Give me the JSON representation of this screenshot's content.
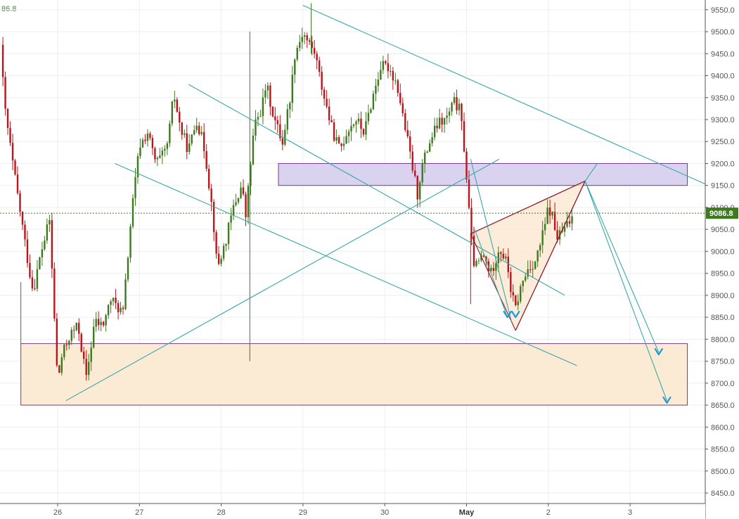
{
  "top_left_label": "86.8",
  "chart_data": {
    "type": "candlestick",
    "y_ticks": [
      8450,
      8500,
      8550,
      8600,
      8650,
      8700,
      8750,
      8800,
      8850,
      8900,
      8950,
      9000,
      9050,
      9100,
      9150,
      9200,
      9250,
      9300,
      9350,
      9400,
      9450,
      9500,
      9550
    ],
    "ylim": [
      8430,
      9570
    ],
    "x_labels": [
      {
        "label": "26",
        "day": 0
      },
      {
        "label": "27",
        "day": 1
      },
      {
        "label": "28",
        "day": 2
      },
      {
        "label": "29",
        "day": 3
      },
      {
        "label": "30",
        "day": 4
      },
      {
        "label": "May",
        "day": 5,
        "bold": true
      },
      {
        "label": "2",
        "day": 6
      },
      {
        "label": "3",
        "day": 7
      }
    ],
    "current_price": {
      "label": "9086.8",
      "value": 9086.8
    },
    "colors": {
      "up": "#3d7a1e",
      "down": "#b8161c",
      "trend": "#3aa8a8",
      "wedge": "#8b1a2a",
      "band_purple": "#d9d3f0",
      "band_orange": "#fcebd4",
      "band_border": "#7a3a8a",
      "arrow": "#1e9ad6",
      "price_tag": "#3d7a1e"
    },
    "anchors": [
      [
        -0.7,
        9470
      ],
      [
        -0.65,
        9330
      ],
      [
        -0.55,
        9200
      ],
      [
        -0.45,
        9080
      ],
      [
        -0.35,
        8960
      ],
      [
        -0.3,
        8910
      ],
      [
        -0.2,
        9000
      ],
      [
        -0.1,
        9070
      ],
      [
        0.0,
        8700
      ],
      [
        0.05,
        8760
      ],
      [
        0.15,
        8810
      ],
      [
        0.25,
        8830
      ],
      [
        0.35,
        8710
      ],
      [
        0.45,
        8840
      ],
      [
        0.55,
        8830
      ],
      [
        0.65,
        8890
      ],
      [
        0.8,
        8860
      ],
      [
        0.9,
        9080
      ],
      [
        1.0,
        9240
      ],
      [
        1.1,
        9270
      ],
      [
        1.2,
        9200
      ],
      [
        1.3,
        9220
      ],
      [
        1.35,
        9250
      ],
      [
        1.42,
        9360
      ],
      [
        1.5,
        9280
      ],
      [
        1.6,
        9230
      ],
      [
        1.7,
        9300
      ],
      [
        1.8,
        9230
      ],
      [
        1.9,
        9080
      ],
      [
        1.95,
        8960
      ],
      [
        2.05,
        9020
      ],
      [
        2.15,
        9100
      ],
      [
        2.25,
        9150
      ],
      [
        2.3,
        9080
      ],
      [
        2.4,
        9280
      ],
      [
        2.5,
        9330
      ],
      [
        2.55,
        9380
      ],
      [
        2.65,
        9300
      ],
      [
        2.75,
        9250
      ],
      [
        2.85,
        9360
      ],
      [
        2.9,
        9450
      ],
      [
        3.0,
        9500
      ],
      [
        3.05,
        9480
      ],
      [
        3.15,
        9450
      ],
      [
        3.2,
        9400
      ],
      [
        3.35,
        9280
      ],
      [
        3.45,
        9230
      ],
      [
        3.55,
        9280
      ],
      [
        3.65,
        9300
      ],
      [
        3.75,
        9270
      ],
      [
        3.85,
        9350
      ],
      [
        3.95,
        9420
      ],
      [
        4.05,
        9420
      ],
      [
        4.15,
        9380
      ],
      [
        4.25,
        9280
      ],
      [
        4.35,
        9180
      ],
      [
        4.4,
        9130
      ],
      [
        4.45,
        9190
      ],
      [
        4.55,
        9250
      ],
      [
        4.65,
        9290
      ],
      [
        4.75,
        9300
      ],
      [
        4.85,
        9340
      ],
      [
        4.92,
        9320
      ],
      [
        4.98,
        9220
      ],
      [
        5.05,
        9040
      ],
      [
        5.1,
        8960
      ],
      [
        5.2,
        8990
      ],
      [
        5.3,
        8950
      ],
      [
        5.4,
        9010
      ],
      [
        5.5,
        8970
      ],
      [
        5.55,
        8900
      ],
      [
        5.6,
        8870
      ],
      [
        5.65,
        8910
      ],
      [
        5.75,
        8960
      ],
      [
        5.85,
        8980
      ],
      [
        5.95,
        9050
      ],
      [
        6.0,
        9100
      ],
      [
        6.05,
        9080
      ],
      [
        6.1,
        9030
      ],
      [
        6.2,
        9050
      ],
      [
        6.3,
        9080
      ]
    ],
    "channel_lines": [
      {
        "from": [
          3.0,
          9560
        ],
        "to": [
          8.2,
          9130
        ]
      },
      {
        "from": [
          1.6,
          9380
        ],
        "to": [
          6.2,
          8900
        ]
      },
      {
        "from": [
          0.7,
          9200
        ],
        "to": [
          6.35,
          8740
        ]
      },
      {
        "from": [
          0.1,
          8660
        ],
        "to": [
          5.4,
          9210
        ]
      }
    ],
    "wedge": {
      "a": [
        5.05,
        9040
      ],
      "b": [
        5.6,
        8820
      ],
      "apex": [
        6.45,
        9160
      ],
      "upper_tl": {
        "from": [
          5.05,
          9040
        ],
        "to": [
          6.45,
          9160
        ]
      }
    },
    "resistance_band": {
      "from_day": 2.7,
      "to_day": 7.7,
      "low": 9150,
      "high": 9200
    },
    "support_band": {
      "from_day": -0.45,
      "to_day": 7.7,
      "low": 8650,
      "high": 8790
    },
    "projection_lines": [
      {
        "from": [
          5.05,
          9210
        ],
        "to": [
          5.55,
          8840
        ]
      },
      {
        "from": [
          5.1,
          9050
        ],
        "to": [
          5.5,
          8850
        ]
      },
      {
        "from": [
          6.45,
          9160
        ],
        "to": [
          7.35,
          8770
        ]
      },
      {
        "from": [
          6.45,
          9160
        ],
        "to": [
          7.45,
          8660
        ]
      },
      {
        "from": [
          6.45,
          9160
        ],
        "to": [
          6.6,
          9200
        ]
      }
    ],
    "arrows": [
      {
        "at": [
          5.5,
          8850
        ]
      },
      {
        "at": [
          5.6,
          8850
        ]
      },
      {
        "at": [
          7.35,
          8765
        ]
      },
      {
        "at": [
          7.45,
          8655
        ]
      }
    ]
  }
}
